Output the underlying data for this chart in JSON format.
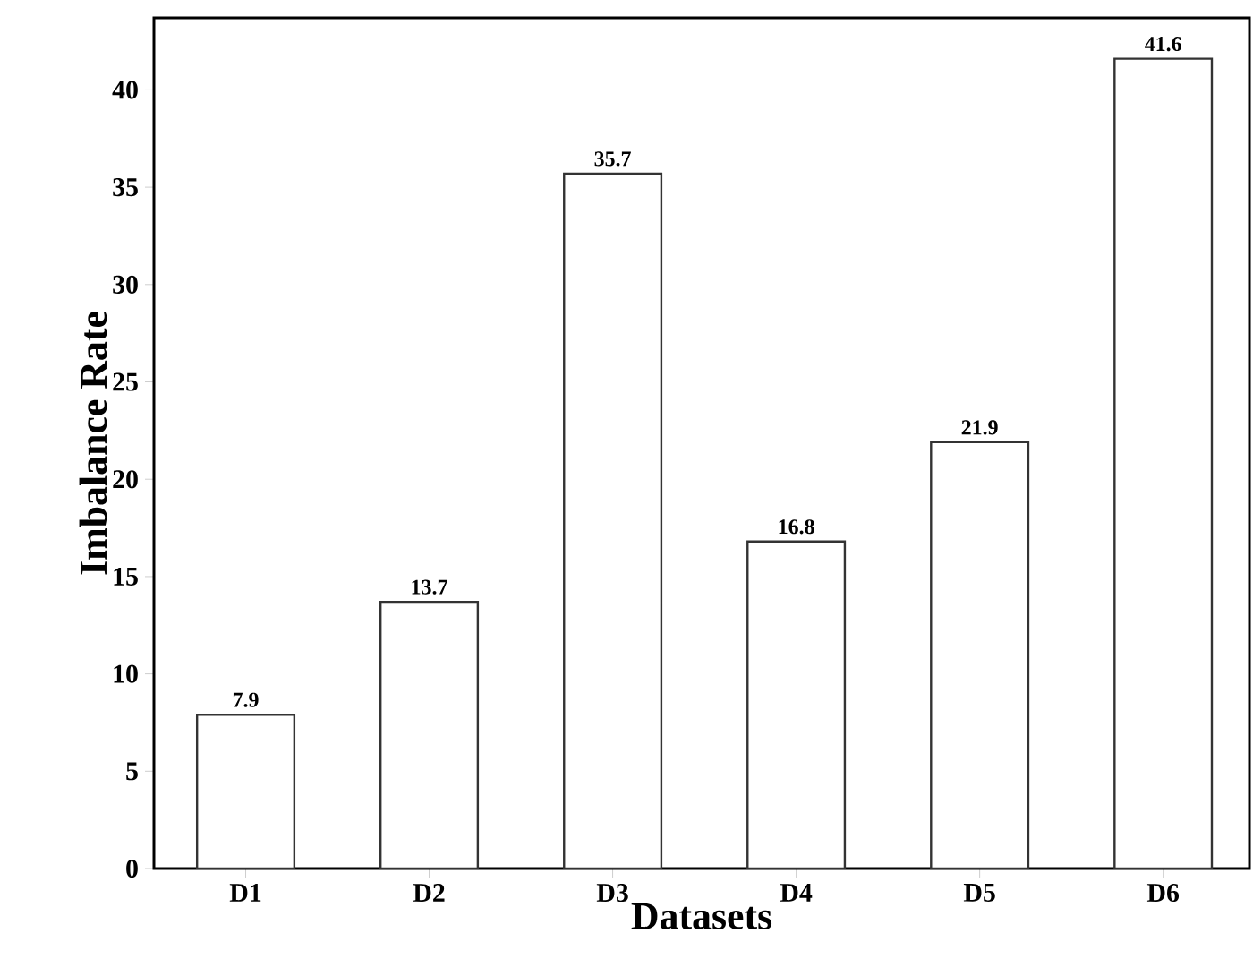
{
  "chart_data": {
    "type": "bar",
    "xlabel": "Datasets",
    "ylabel": "Imbalance Rate",
    "categories": [
      "D1",
      "D2",
      "D3",
      "D4",
      "D5",
      "D6"
    ],
    "values": [
      7.9,
      13.7,
      35.7,
      16.8,
      21.9,
      41.6
    ],
    "color": "#ffffff",
    "data_labels": true,
    "grid": false,
    "ylim": [
      0,
      43.7
    ],
    "yticks": [
      0,
      5,
      10,
      15,
      20,
      25,
      30,
      35,
      40
    ]
  }
}
